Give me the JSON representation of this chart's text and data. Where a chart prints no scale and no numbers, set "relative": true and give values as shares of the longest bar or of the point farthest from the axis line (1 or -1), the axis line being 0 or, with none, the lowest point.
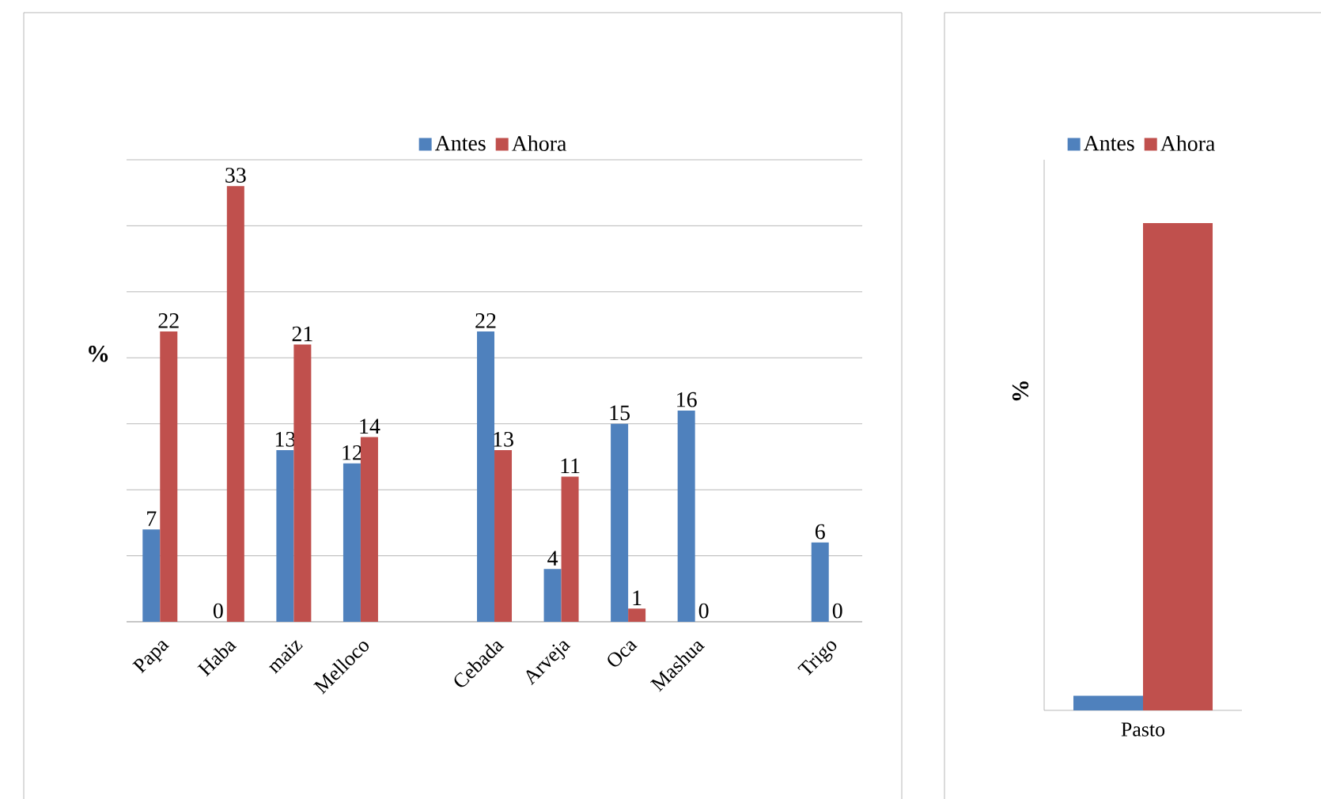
{
  "chart_data": [
    {
      "type": "bar",
      "ylabel": "%",
      "categories": [
        "Papa",
        "Haba",
        "maiz",
        "Melloco",
        null,
        "Cebada",
        "Arveja",
        "Oca",
        "Mashua",
        null,
        "Trigo"
      ],
      "series": [
        {
          "name": "Antes",
          "color": "#4f81bd",
          "values": [
            7,
            0,
            13,
            12,
            null,
            22,
            4,
            15,
            16,
            null,
            6
          ]
        },
        {
          "name": "Ahora",
          "color": "#c0504d",
          "values": [
            22,
            33,
            21,
            14,
            null,
            13,
            11,
            1,
            0,
            null,
            0
          ]
        }
      ],
      "ylim": [
        0,
        35
      ],
      "yticks": [
        {
          "value": 0,
          "label": null
        },
        {
          "value": 5,
          "label": null
        },
        {
          "value": 10,
          "label": null
        },
        {
          "value": 15,
          "label": null
        },
        {
          "value": 20,
          "label": null
        },
        {
          "value": 25,
          "label": null
        },
        {
          "value": 30,
          "label": null
        },
        {
          "value": 35,
          "label": null
        }
      ],
      "tick_labels": "x",
      "grid": "y",
      "legend": "top",
      "data_labels": true
    },
    {
      "type": "bar",
      "ylabel": "%",
      "categories": [
        "Pasto"
      ],
      "relative": true,
      "series": [
        {
          "name": "Antes",
          "color": "#4f81bd",
          "values": [
            0.03
          ]
        },
        {
          "name": "Ahora",
          "color": "#c0504d",
          "values": [
            1
          ]
        }
      ],
      "legend": "top"
    }
  ]
}
